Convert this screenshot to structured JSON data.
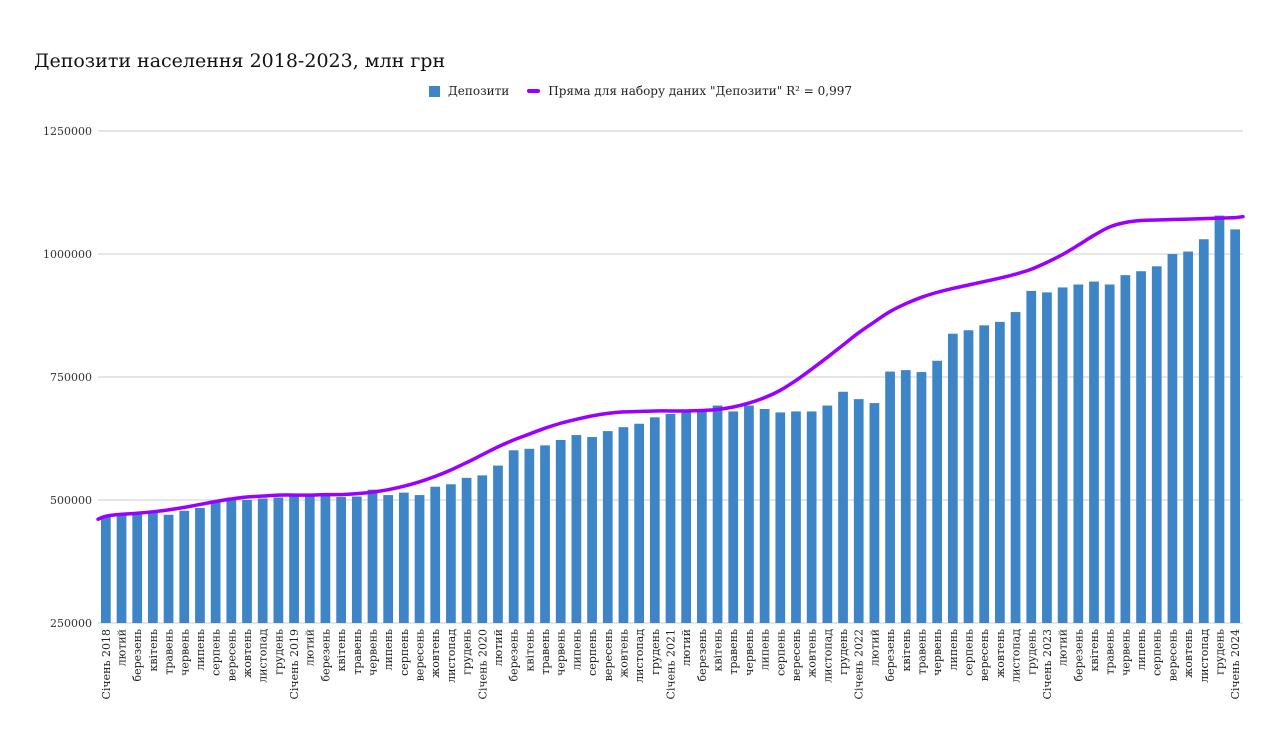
{
  "chart_data": {
    "type": "bar",
    "title": "Депозити населення 2018-2023, млн грн",
    "xlabel": "",
    "ylabel": "",
    "ylim": [
      250000,
      1250000
    ],
    "yticks": [
      250000,
      500000,
      750000,
      1000000,
      1250000
    ],
    "grid": true,
    "legend_position": "top-center",
    "colors": {
      "bar": "#3d85c6",
      "trend": "#9900ff",
      "grid": "#cccccc"
    },
    "categories": [
      "Січень 2018",
      "лютий",
      "березень",
      "квітень",
      "травень",
      "червень",
      "липень",
      "серпень",
      "вересень",
      "жовтень",
      "листопад",
      "грудень",
      "Січень 2019",
      "лютий",
      "березень",
      "квітень",
      "травень",
      "червень",
      "липень",
      "серпень",
      "вересень",
      "жовтень",
      "листопад",
      "грудень",
      "Січень 2020",
      "лютий",
      "березень",
      "квітень",
      "травень",
      "червень",
      "липень",
      "серпень",
      "вересень",
      "жовтень",
      "листопад",
      "грудень",
      "Січень 2021",
      "лютий",
      "березень",
      "квітень",
      "травень",
      "червень",
      "липень",
      "серпень",
      "вересень",
      "жовтень",
      "листопад",
      "грудень",
      "Січень 2022",
      "лютий",
      "березень",
      "квітень",
      "травень",
      "червень",
      "липень",
      "серпень",
      "вересень",
      "жовтень",
      "листопад",
      "грудень",
      "Січень 2023",
      "лютий",
      "березень",
      "квітень",
      "травень",
      "червень",
      "липень",
      "серпень",
      "вересень",
      "жовтень",
      "листопад",
      "грудень",
      "Січень 2024"
    ],
    "series": [
      {
        "name": "Депозити",
        "type": "bar",
        "values": [
          467000,
          470000,
          472000,
          474000,
          470000,
          478000,
          484000,
          496000,
          505000,
          500000,
          503000,
          505000,
          508000,
          508000,
          508000,
          506000,
          507000,
          521000,
          510000,
          515000,
          510000,
          527000,
          532000,
          545000,
          550000,
          570000,
          601000,
          604000,
          611000,
          622000,
          632000,
          628000,
          640000,
          648000,
          655000,
          668000,
          675000,
          680000,
          680000,
          692000,
          680000,
          692000,
          685000,
          678000,
          680000,
          680000,
          692000,
          720000,
          705000,
          697000,
          761000,
          764000,
          760000,
          783000,
          838000,
          845000,
          855000,
          862000,
          882000,
          925000,
          922000,
          932000,
          938000,
          944000,
          938000,
          957000,
          965000,
          975000,
          1000000,
          1005000,
          1030000,
          1078000,
          1050000
        ]
      },
      {
        "name": "Пряма для набору даних \"Депозити\" R² = 0,997",
        "type": "line",
        "values": [
          467000,
          471000,
          473000,
          476000,
          480000,
          485000,
          491000,
          497000,
          502000,
          506000,
          508000,
          510000,
          510000,
          510000,
          511000,
          511000,
          513000,
          516000,
          521000,
          528000,
          537000,
          548000,
          561000,
          576000,
          592000,
          608000,
          622000,
          634000,
          646000,
          656000,
          664000,
          671000,
          676000,
          679000,
          680000,
          681000,
          681000,
          681000,
          682000,
          684000,
          689000,
          697000,
          708000,
          723000,
          743000,
          766000,
          790000,
          815000,
          840000,
          862000,
          883000,
          899000,
          912000,
          922000,
          930000,
          937000,
          944000,
          951000,
          959000,
          969000,
          983000,
          999000,
          1018000,
          1038000,
          1055000,
          1064000,
          1068000,
          1069000,
          1070000,
          1071000,
          1072000,
          1073000,
          1074000
        ]
      }
    ]
  }
}
